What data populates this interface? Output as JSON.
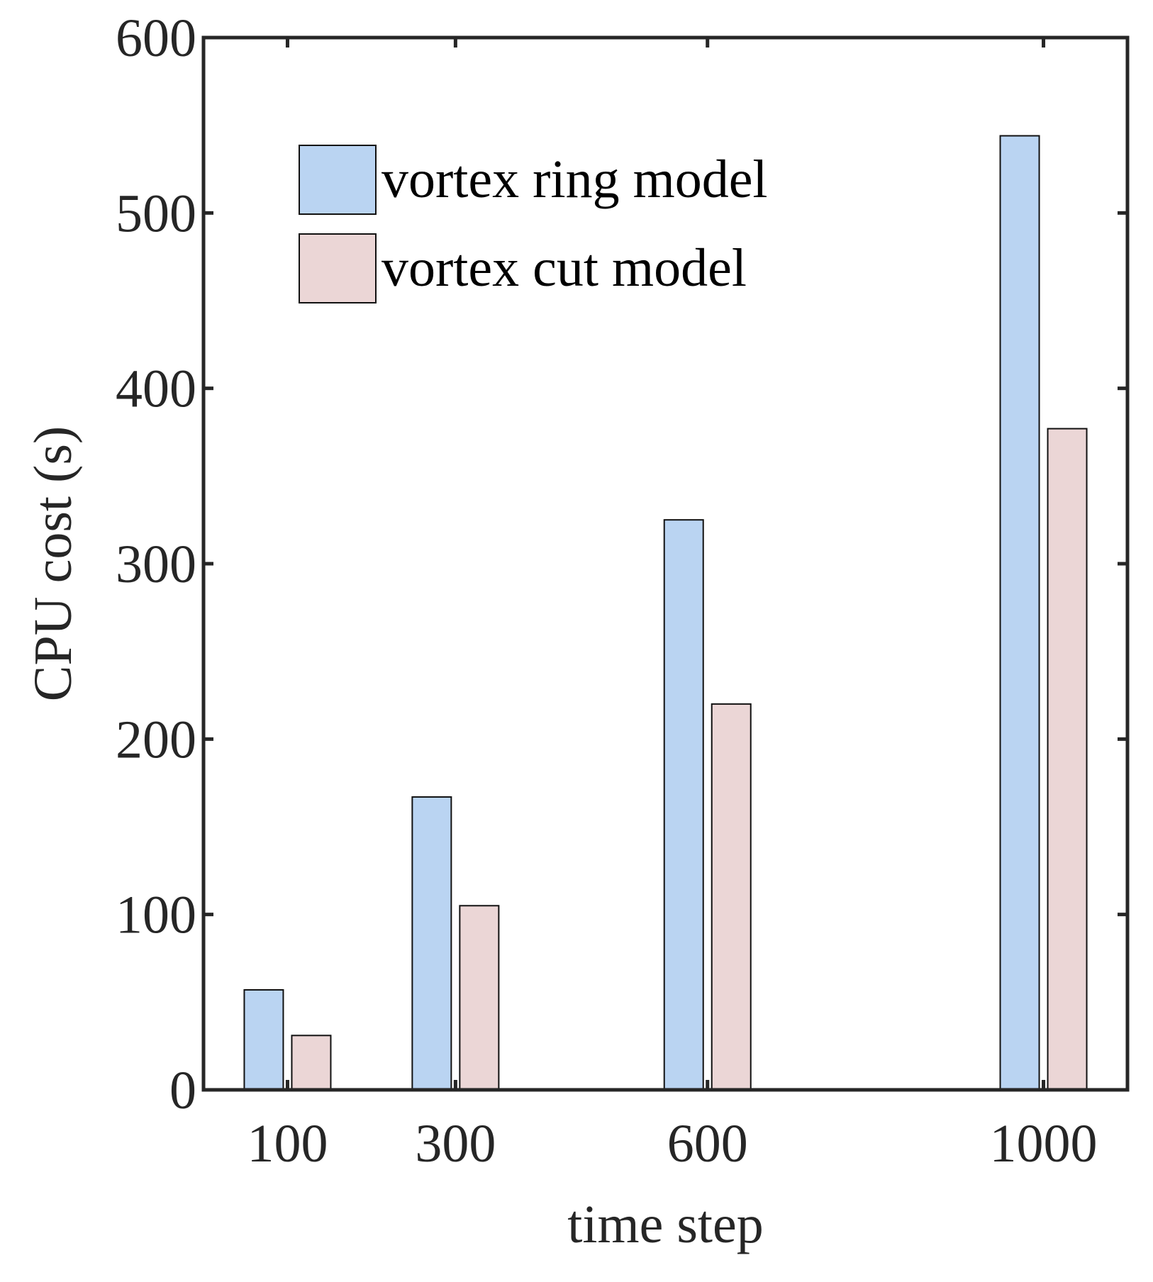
{
  "chart_data": {
    "type": "bar",
    "x": [
      100,
      300,
      600,
      1000
    ],
    "categories": [
      "100",
      "300",
      "600",
      "1000"
    ],
    "series": [
      {
        "name": "vortex ring model",
        "values": [
          57,
          167,
          325,
          544
        ],
        "color": "#bad4f2"
      },
      {
        "name": "vortex cut model",
        "values": [
          31,
          105,
          220,
          377
        ],
        "color": "#ebd6d6"
      }
    ],
    "xlabel": "time step",
    "ylabel": "CPU cost (s)",
    "xlim": [
      0,
      1100
    ],
    "ylim": [
      0,
      600
    ],
    "yticks": [
      0,
      100,
      200,
      300,
      400,
      500,
      600
    ],
    "ytick_labels": [
      "0",
      "100",
      "200",
      "300",
      "400",
      "500",
      "600"
    ],
    "grid": false,
    "legend_position": "top-left",
    "axis_color": "#262626"
  }
}
